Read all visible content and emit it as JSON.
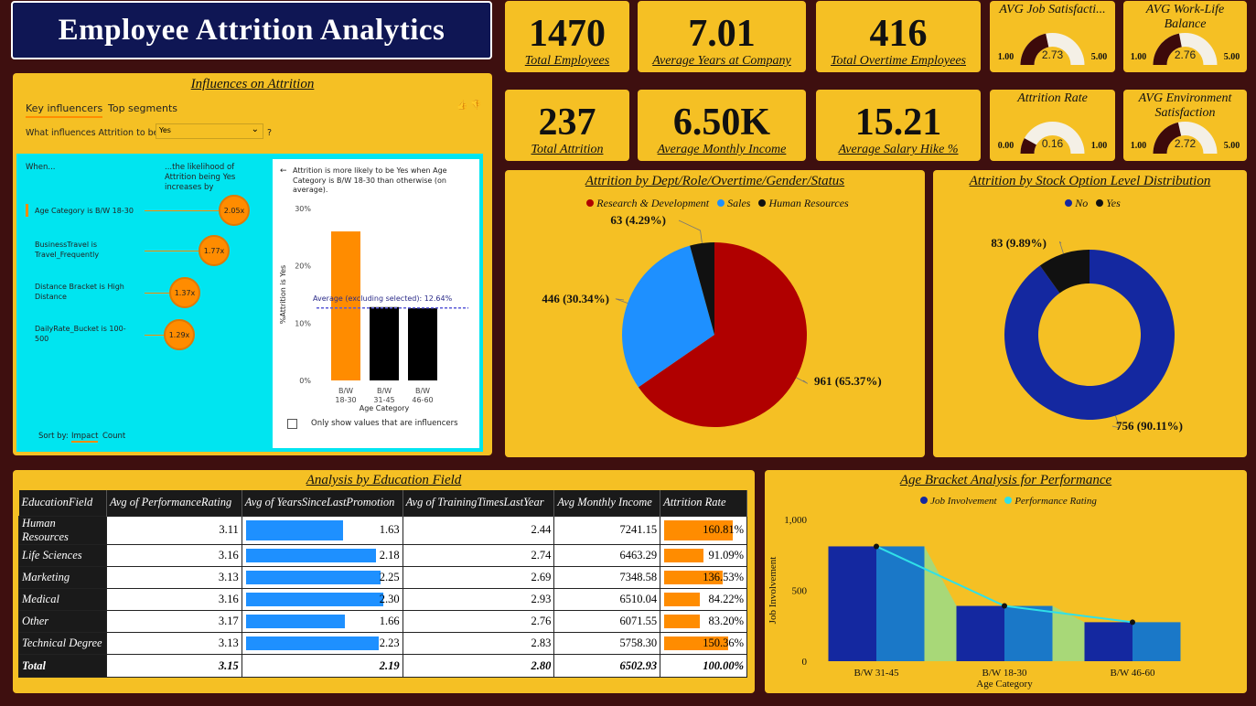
{
  "title": "Employee Attrition Analytics",
  "kpis": [
    {
      "value": "1470",
      "label": "Total Employees"
    },
    {
      "value": "7.01",
      "label": "Average Years at Company"
    },
    {
      "value": "416",
      "label": "Total Overtime Employees"
    },
    {
      "value": "237",
      "label": "Total Attrition"
    },
    {
      "value": "6.50K",
      "label": "Average Monthly Income"
    },
    {
      "value": "15.21",
      "label": "Average Salary Hike %"
    }
  ],
  "gauges": [
    {
      "title": "AVG Job Satisfacti...",
      "value": 2.73,
      "display": "2.73",
      "min": "1.00",
      "max": "5.00",
      "minv": 1,
      "maxv": 5
    },
    {
      "title": "AVG Work-Life Balance",
      "value": 2.76,
      "display": "2.76",
      "min": "1.00",
      "max": "5.00",
      "minv": 1,
      "maxv": 5
    },
    {
      "title": "Attrition Rate",
      "value": 0.16,
      "display": "0.16",
      "min": "0.00",
      "max": "1.00",
      "minv": 0,
      "maxv": 1
    },
    {
      "title": "AVG Environment Satisfaction",
      "value": 2.72,
      "display": "2.72",
      "min": "1.00",
      "max": "5.00",
      "minv": 1,
      "maxv": 5
    }
  ],
  "influencers": {
    "title": "Influences on Attrition",
    "tab_key": "Key influencers",
    "tab_top": "Top segments",
    "question": "What influences Attrition to be",
    "select_value": "Yes",
    "question_mark": "?",
    "when": "When...",
    "likelihood": "...the likelihood of Attrition being Yes increases by",
    "items": [
      {
        "label": "Age Category is B/W 18-30",
        "factor": "2.05x"
      },
      {
        "label": "BusinessTravel is Travel_Frequently",
        "factor": "1.77x"
      },
      {
        "label": "Distance Bracket is High Distance",
        "factor": "1.37x"
      },
      {
        "label": "DailyRate_Bucket is 100-500",
        "factor": "1.29x"
      }
    ],
    "sort_by": "Sort by:",
    "sort_impact": "Impact",
    "sort_count": "Count",
    "detail_text": "Attrition is more likely to be Yes when Age Category is B/W 18-30 than otherwise (on average).",
    "avg_label": "Average (excluding selected): 12.64%",
    "checkbox_label": "Only show values that are influencers",
    "chart": {
      "ylabel": "%Attrition is Yes",
      "xlabel": "Age Category",
      "yticks": [
        "30%",
        "20%",
        "10%",
        "0%"
      ],
      "categories": [
        "B/W\n18-30",
        "B/W\n31-45",
        "B/W\n46-60"
      ],
      "cat_line1": [
        "B/W",
        "B/W",
        "B/W"
      ],
      "cat_line2": [
        "18-30",
        "31-45",
        "46-60"
      ],
      "values": [
        26,
        12.8,
        12.6
      ],
      "average": 12.64,
      "colors": [
        "#ff8c00",
        "#000000",
        "#000000"
      ]
    }
  },
  "chart_data": [
    {
      "type": "pie",
      "title": "Attrition by Dept/Role/Overtime/Gender/Status",
      "labels": [
        "Research & Development",
        "Sales",
        "Human Resources"
      ],
      "values": [
        961,
        446,
        63
      ],
      "display": [
        "961 (65.37%)",
        "446 (30.34%)",
        "63 (4.29%)"
      ],
      "colors": [
        "#b00000",
        "#1e90ff",
        "#111111"
      ],
      "legend": "top"
    },
    {
      "type": "pie",
      "title": "Attrition by Stock Option Level Distribution",
      "labels": [
        "No",
        "Yes"
      ],
      "values": [
        756,
        83
      ],
      "display": [
        "756 (90.11%)",
        "83 (9.89%)"
      ],
      "colors": [
        "#1428a0",
        "#111111"
      ],
      "legend": "top",
      "donut": true
    },
    {
      "type": "table",
      "title": "Analysis by Education Field",
      "columns": [
        "EducationField",
        "Avg of PerformanceRating",
        "Avg of YearsSinceLastPromotion",
        "Avg of TrainingTimesLastYear",
        "Avg Monthly Income",
        "Attrition Rate"
      ],
      "rows": [
        [
          "Human Resources",
          "3.11",
          "1.63",
          "2.44",
          "7241.15",
          "160.81%"
        ],
        [
          "Life Sciences",
          "3.16",
          "2.18",
          "2.74",
          "6463.29",
          "91.09%"
        ],
        [
          "Marketing",
          "3.13",
          "2.25",
          "2.69",
          "7348.58",
          "136.53%"
        ],
        [
          "Medical",
          "3.16",
          "2.30",
          "2.93",
          "6510.04",
          "84.22%"
        ],
        [
          "Other",
          "3.17",
          "1.66",
          "2.76",
          "6071.55",
          "83.20%"
        ],
        [
          "Technical Degree",
          "3.13",
          "2.23",
          "2.83",
          "5758.30",
          "150.36%"
        ]
      ],
      "total": [
        "Total",
        "3.15",
        "2.19",
        "2.80",
        "6502.93",
        "100.00%"
      ],
      "promo_values": [
        1.63,
        2.18,
        2.25,
        2.3,
        1.66,
        2.23
      ],
      "attr_values": [
        160.81,
        91.09,
        136.53,
        84.22,
        83.2,
        150.36
      ]
    },
    {
      "type": "bar",
      "title": "Age Bracket Analysis for Performance",
      "categories": [
        "B/W 31-45",
        "B/W 18-30",
        "B/W 46-60"
      ],
      "series": [
        {
          "name": "Job Involvement",
          "values": [
            810,
            390,
            275
          ]
        },
        {
          "name": "Performance Rating",
          "values": [
            810,
            390,
            275
          ]
        }
      ],
      "xlabel": "Age Category",
      "ylabel": "Job Involvement",
      "yticks": [
        "1,000",
        "500",
        "0"
      ],
      "ylim": [
        0,
        1000
      ],
      "colors": [
        "#1428a0",
        "#30e0e8",
        "#1a78c8",
        "#a8d878"
      ]
    }
  ]
}
